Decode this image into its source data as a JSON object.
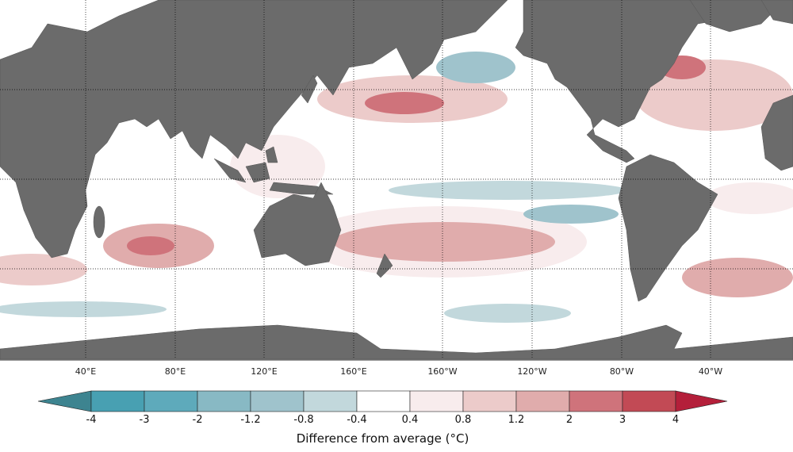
{
  "map": {
    "land_color": "#6b6b6b",
    "ocean_color": "#ffffff",
    "longitude_labels": [
      "40°E",
      "80°E",
      "120°E",
      "160°E",
      "160°W",
      "120°W",
      "80°W",
      "40°W"
    ]
  },
  "colorbar": {
    "title": "Difference from average (°C)",
    "ticks": [
      "-4",
      "-3",
      "-2",
      "-1.2",
      "-0.8",
      "-0.4",
      "0.4",
      "0.8",
      "1.2",
      "2",
      "3",
      "4"
    ],
    "colors": [
      "#48a0b2",
      "#5eaabb",
      "#88b9c4",
      "#9fc3cc",
      "#c2d8dc",
      "#ffffff",
      "#f8eced",
      "#eccbca",
      "#e0acac",
      "#cf737b",
      "#c24a55"
    ],
    "under_color": "#3d8490",
    "over_color": "#b41f3a"
  }
}
